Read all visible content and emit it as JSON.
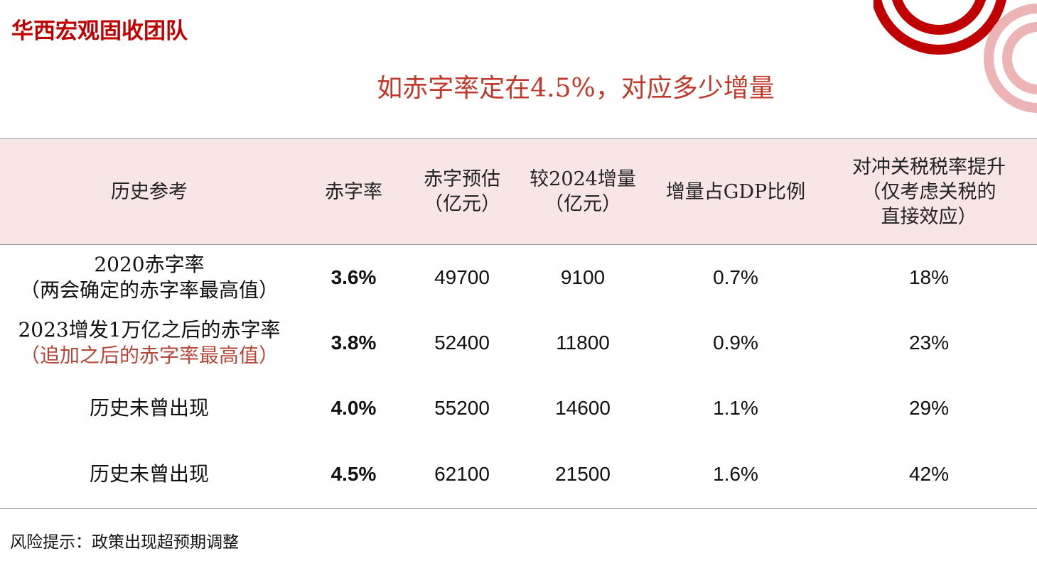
{
  "header": {
    "team_name": "华西宏观固收团队"
  },
  "title": "如赤字率定在4.5%，对应多少增量",
  "table": {
    "columns": {
      "reference": "历史参考",
      "deficit_rate": "赤字率",
      "deficit_estimate": [
        "赤字预估",
        "（亿元）"
      ],
      "increment": [
        "较2024增量",
        "（亿元）"
      ],
      "gdp_ratio": "增量占GDP比例",
      "tariff": [
        "对冲关税税率提升",
        "（仅考虑关税的",
        "直接效应）"
      ]
    },
    "rows": [
      {
        "reference_line1": "2020赤字率",
        "reference_line2": "（两会确定的赤字率最高值）",
        "deficit_rate": "3.6%",
        "estimate": "49700",
        "increment": "9100",
        "gdp_ratio": "0.7%",
        "tariff": "18%"
      },
      {
        "reference_line1": "2023增发1万亿之后的赤字率",
        "reference_line2": "（追加之后的赤字率最高值）",
        "deficit_rate": "3.8%",
        "estimate": "52400",
        "increment": "11800",
        "gdp_ratio": "0.9%",
        "tariff": "23%"
      },
      {
        "reference_line1": "历史未曾出现",
        "deficit_rate": "4.0%",
        "estimate": "55200",
        "increment": "14600",
        "gdp_ratio": "1.1%",
        "tariff": "29%"
      },
      {
        "reference_line1": "历史未曾出现",
        "deficit_rate": "4.5%",
        "estimate": "62100",
        "increment": "21500",
        "gdp_ratio": "1.6%",
        "tariff": "42%"
      }
    ]
  },
  "footer": {
    "risk_note": "风险提示：政策出现超预期调整"
  },
  "colors": {
    "brand_red": "#c00000",
    "accent": "#b5473a",
    "header_bg": "#f8e5e5"
  }
}
